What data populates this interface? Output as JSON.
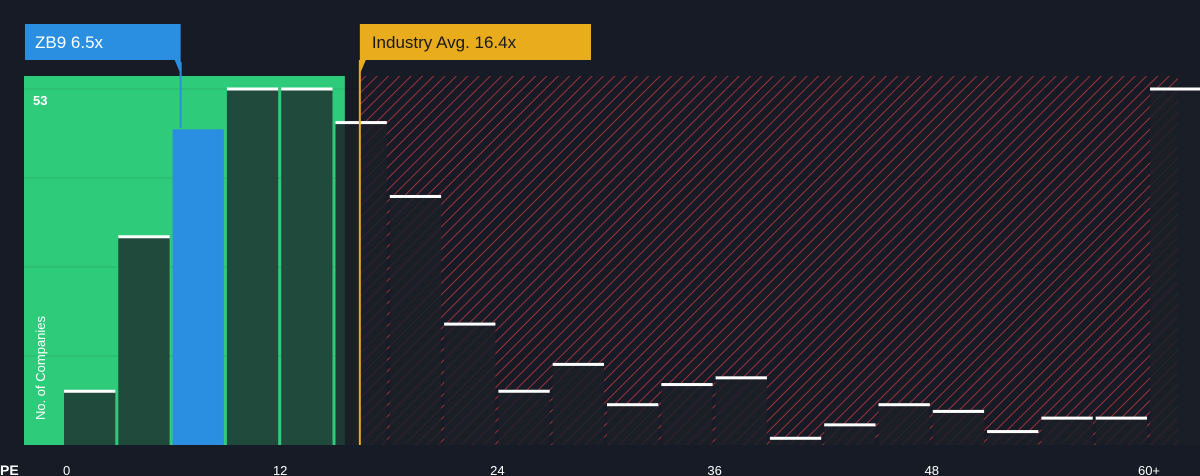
{
  "chart_data": {
    "type": "bar",
    "x_label": "PE",
    "y_label": "No. of Companies",
    "y_max_label": "53",
    "y_max": 53,
    "x_ticks": [
      "0",
      "12",
      "24",
      "36",
      "48",
      "60+"
    ],
    "x_tick_values": [
      0,
      12,
      24,
      36,
      48,
      60
    ],
    "bin_width": 3,
    "bins": [
      {
        "x": 0,
        "value": 8
      },
      {
        "x": 3,
        "value": 31
      },
      {
        "x": 6,
        "value": 47
      },
      {
        "x": 9,
        "value": 53
      },
      {
        "x": 12,
        "value": 53
      },
      {
        "x": 15,
        "value": 48
      },
      {
        "x": 18,
        "value": 37
      },
      {
        "x": 21,
        "value": 18
      },
      {
        "x": 24,
        "value": 8
      },
      {
        "x": 27,
        "value": 12
      },
      {
        "x": 30,
        "value": 6
      },
      {
        "x": 33,
        "value": 9
      },
      {
        "x": 36,
        "value": 10
      },
      {
        "x": 39,
        "value": 1
      },
      {
        "x": 42,
        "value": 3
      },
      {
        "x": 45,
        "value": 6
      },
      {
        "x": 48,
        "value": 5
      },
      {
        "x": 51,
        "value": 2
      },
      {
        "x": 54,
        "value": 4
      },
      {
        "x": 57,
        "value": 4
      },
      {
        "x": 60,
        "value": 53
      }
    ],
    "company": {
      "label": "ZB9 6.5x",
      "value": 6.5
    },
    "industry": {
      "label": "Industry Avg. 16.4x",
      "value": 16.4
    },
    "colors": {
      "background": "#161b26",
      "green_zone": "#2ecc7a",
      "green_bar": "#1f4a3c",
      "company_bar": "#2a8fe0",
      "company_marker": "#2a8fe0",
      "industry_marker": "#e8ac1c",
      "red_hatch": "#c0363f",
      "dark_bar": "#1b1e28",
      "bar_cap": "#ffffff",
      "text": "#ffffff",
      "grid": "#2c3140"
    }
  }
}
